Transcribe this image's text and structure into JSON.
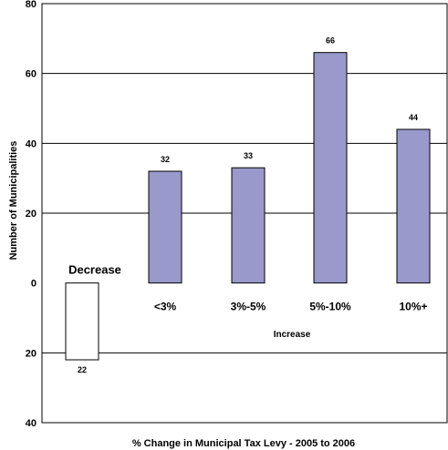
{
  "chart_data": {
    "type": "bar",
    "categories": [
      "Decrease",
      "<3%",
      "3%-5%",
      "5%-10%",
      "10%+"
    ],
    "values": [
      -22,
      32,
      33,
      66,
      44
    ],
    "value_labels": [
      "22",
      "32",
      "33",
      "66",
      "44"
    ],
    "title": "",
    "xlabel": "% Change in Municipal Tax Levy - 2005 to 2006",
    "ylabel": "Number of Municipalities",
    "group_label": "Increase",
    "ylim": [
      -40,
      80
    ],
    "y_ticks": [
      80,
      60,
      40,
      20,
      0,
      -20,
      -40
    ],
    "y_tick_labels": [
      "80",
      "60",
      "40",
      "20",
      "0",
      "20",
      "40"
    ],
    "grid": true,
    "colors": {
      "bar_fill": "#9999cc",
      "negative_fill": "#ffffff",
      "stroke": "#000000"
    }
  }
}
